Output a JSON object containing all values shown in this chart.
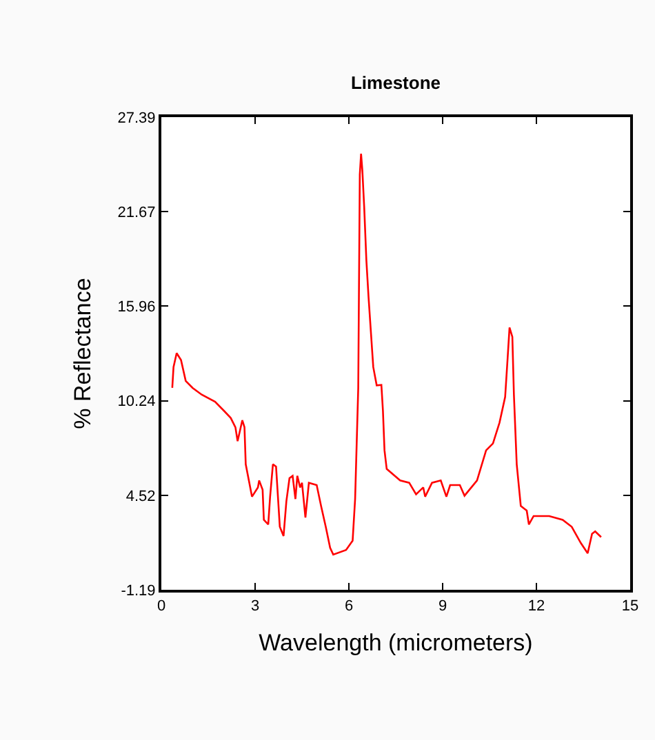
{
  "chart_data": {
    "type": "line",
    "title": "Limestone",
    "xlabel": "Wavelength (micrometers)",
    "ylabel": "% Reflectance",
    "xlim": [
      0,
      15
    ],
    "xticks": [
      0,
      3,
      6,
      9,
      12,
      15
    ],
    "ylim": [
      -1.19,
      27.39
    ],
    "yticks": [
      -1.19,
      4.52,
      10.24,
      15.96,
      21.67,
      27.39
    ],
    "series": [
      {
        "color": "#ff0000",
        "x": [
          0.35,
          0.39,
          0.49,
          0.63,
          0.78,
          1.0,
          1.29,
          1.72,
          2.01,
          2.22,
          2.37,
          2.44,
          2.59,
          2.66,
          2.7,
          2.8,
          2.9,
          3.09,
          3.13,
          3.24,
          3.28,
          3.42,
          3.48,
          3.57,
          3.67,
          3.74,
          3.79,
          3.91,
          4.0,
          4.1,
          4.2,
          4.29,
          4.35,
          4.44,
          4.5,
          4.61,
          4.72,
          4.97,
          5.11,
          5.26,
          5.4,
          5.5,
          5.91,
          6.12,
          6.2,
          6.3,
          6.35,
          6.39,
          6.43,
          6.49,
          6.56,
          6.63,
          6.71,
          6.78,
          6.89,
          7.04,
          7.09,
          7.14,
          7.21,
          7.64,
          7.93,
          8.15,
          8.38,
          8.44,
          8.66,
          8.94,
          9.12,
          9.24,
          9.55,
          9.7,
          10.1,
          10.39,
          10.61,
          10.82,
          11.0,
          11.08,
          11.14,
          11.23,
          11.28,
          11.37,
          11.5,
          11.69,
          11.76,
          11.91,
          12.41,
          12.84,
          13.13,
          13.42,
          13.64,
          13.78,
          13.88,
          14.07
        ],
        "values": [
          11.02,
          12.28,
          13.12,
          12.7,
          11.44,
          11.02,
          10.61,
          10.18,
          9.62,
          9.2,
          8.64,
          7.8,
          9.06,
          8.64,
          6.4,
          5.42,
          4.44,
          5.0,
          5.42,
          4.86,
          3.04,
          2.76,
          4.44,
          6.4,
          6.26,
          4.16,
          2.62,
          2.06,
          4.16,
          5.56,
          5.7,
          4.3,
          5.7,
          5.0,
          5.28,
          3.18,
          5.28,
          5.14,
          3.88,
          2.62,
          1.35,
          0.94,
          1.22,
          1.78,
          4.3,
          11.02,
          23.92,
          25.18,
          24.2,
          21.96,
          18.73,
          16.49,
          14.25,
          12.28,
          11.17,
          11.2,
          9.62,
          7.24,
          6.12,
          5.42,
          5.28,
          4.58,
          5.0,
          4.44,
          5.28,
          5.42,
          4.44,
          5.14,
          5.14,
          4.5,
          5.42,
          7.24,
          7.66,
          8.92,
          10.47,
          12.85,
          14.67,
          14.1,
          10.61,
          6.4,
          3.88,
          3.6,
          2.76,
          3.27,
          3.27,
          3.04,
          2.62,
          1.64,
          1.02,
          2.2,
          2.34,
          2.0
        ]
      }
    ]
  }
}
